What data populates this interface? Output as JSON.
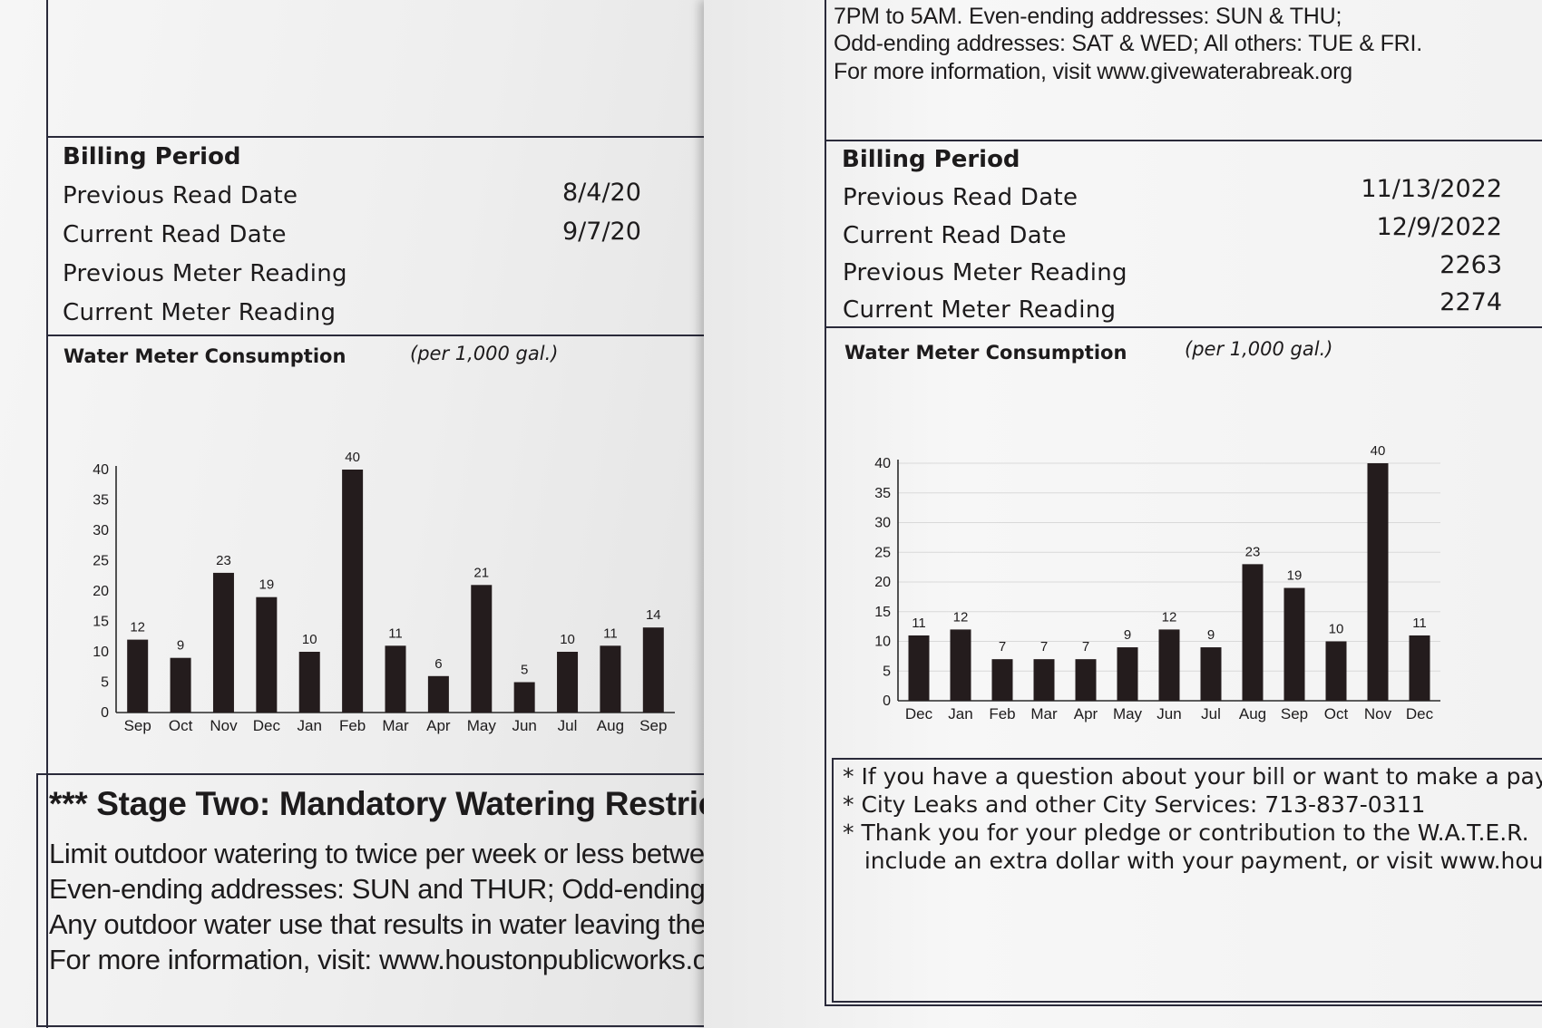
{
  "left_bill": {
    "billing": {
      "title": "Billing Period",
      "rows": [
        {
          "label": "Previous Read Date",
          "value": "8/4/20"
        },
        {
          "label": "Current Read Date",
          "value": "9/7/20"
        },
        {
          "label": "Previous Meter Reading",
          "value": ""
        },
        {
          "label": "Current Meter Reading",
          "value": ""
        }
      ]
    },
    "consumption": {
      "title": "Water Meter Consumption",
      "unit": "(per 1,000 gal.)"
    },
    "notice": {
      "title": "*** Stage Two: Mandatory Watering Restrictior",
      "lines": [
        "Limit outdoor watering to twice per week or less between t",
        "Even-ending addresses: SUN and THUR; Odd-ending add",
        "Any outdoor water use that results in water leaving the cu",
        "For more information, visit: www.houstonpublicworks.org/"
      ]
    }
  },
  "right_bill": {
    "top_notice": [
      "7PM to 5AM. Even-ending addresses: SUN & THU;",
      "Odd-ending addresses: SAT & WED; All others: TUE & FRI.",
      "For more information, visit www.givewaterabreak.org"
    ],
    "billing": {
      "title": "Billing Period",
      "rows": [
        {
          "label": "Previous Read Date",
          "value": "11/13/2022"
        },
        {
          "label": "Current Read Date",
          "value": "12/9/2022"
        },
        {
          "label": "Previous Meter Reading",
          "value": "2263"
        },
        {
          "label": "Current Meter Reading",
          "value": "2274"
        }
      ]
    },
    "consumption": {
      "title": "Water Meter Consumption",
      "unit": "(per 1,000 gal.)"
    },
    "contact_lines": [
      "* If you have a question about your bill or want to make a pay",
      "* City Leaks and other City Services: 713-837-0311",
      "* Thank you for your pledge or contribution to the W.A.T.E.R.",
      "   include an extra dollar with your payment, or visit www.hou"
    ]
  },
  "chart_data": [
    {
      "type": "bar",
      "categories": [
        "Sep",
        "Oct",
        "Nov",
        "Dec",
        "Jan",
        "Feb",
        "Mar",
        "Apr",
        "May",
        "Jun",
        "Jul",
        "Aug",
        "Sep"
      ],
      "values": [
        12,
        9,
        23,
        19,
        10,
        40,
        11,
        6,
        21,
        5,
        10,
        11,
        14
      ],
      "yticks": [
        "0",
        "5",
        "10",
        "15",
        "20",
        "25",
        "30",
        "35",
        "40"
      ],
      "ylim": [
        0,
        40
      ],
      "grid": false,
      "bar_color": "#241c1d"
    },
    {
      "type": "bar",
      "categories": [
        "Dec",
        "Jan",
        "Feb",
        "Mar",
        "Apr",
        "May",
        "Jun",
        "Jul",
        "Aug",
        "Sep",
        "Oct",
        "Nov",
        "Dec"
      ],
      "values": [
        11,
        12,
        7,
        7,
        7,
        9,
        12,
        9,
        23,
        19,
        10,
        40,
        11
      ],
      "yticks": [
        "0",
        "5",
        "10",
        "15",
        "20",
        "25",
        "30",
        "35",
        "40"
      ],
      "ylim": [
        0,
        40
      ],
      "grid": true,
      "bar_color": "#241c1d"
    }
  ]
}
